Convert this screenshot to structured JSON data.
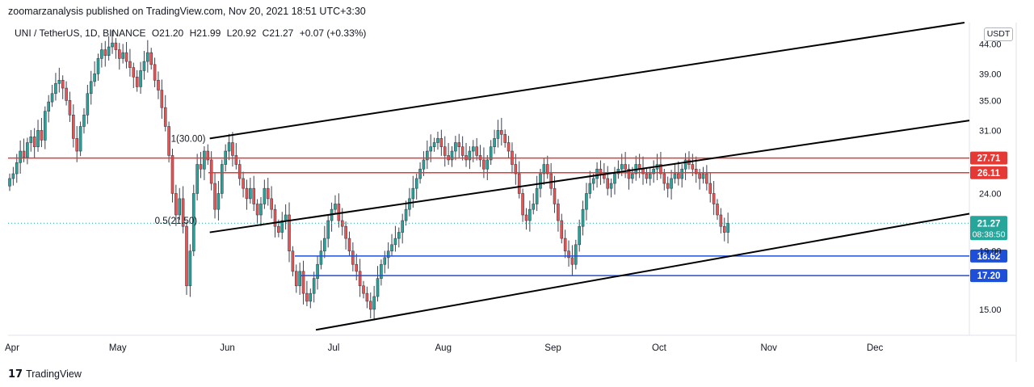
{
  "header": {
    "publish_line": "zoomarzanalysis published on TradingView.com, Nov 20, 2021 18:51 UTC+3:30"
  },
  "legend": {
    "symbol": "UNI / TetherUS, 1D, BINANCE",
    "open": "O21.20",
    "high": "H21.99",
    "low": "L20.92",
    "close": "C21.27",
    "change": "+0.07 (+0.33%)"
  },
  "currency_button": "USDT",
  "footer": {
    "brand": "TradingView"
  },
  "fib_labels": {
    "top": "1(30.00)",
    "mid": "0.5(21.50)"
  },
  "colors": {
    "up": "#26a69a",
    "down": "#ef5350",
    "candle_body": "#5a5f6b",
    "resistance": "#e53935",
    "support": "#1e4fd8",
    "channel": "#000000",
    "last_price": "#26a69a"
  },
  "chart_data": {
    "type": "candlestick",
    "symbol": "UNI / TetherUS",
    "timeframe": "1D",
    "exchange": "BINANCE",
    "scale": "log",
    "x_ticks": [
      "Apr",
      "May",
      "Jun",
      "Jul",
      "Aug",
      "Sep",
      "Oct",
      "Nov",
      "Dec"
    ],
    "y_ticks": [
      15.0,
      17.2,
      18.62,
      21.27,
      24.0,
      26.11,
      27.71,
      31.0,
      35.0,
      39.0,
      44.0
    ],
    "y_ticks_axis": [
      "44.00",
      "39.00",
      "35.00",
      "31.00",
      "24.00",
      "19.00",
      "15.00"
    ],
    "ylim": [
      13.5,
      48.0
    ],
    "horizontal_levels": [
      {
        "value": 27.71,
        "label": "27.71",
        "color": "resistance"
      },
      {
        "value": 26.11,
        "label": "26.11",
        "color": "resistance"
      },
      {
        "value": 18.62,
        "label": "18.62",
        "color": "support"
      },
      {
        "value": 17.2,
        "label": "17.20",
        "color": "support"
      }
    ],
    "last_price": {
      "value": 21.27,
      "label": "21.27",
      "countdown": "08:38:50"
    },
    "channel_lines": [
      {
        "from": [
          "2021-05-27",
          30.0
        ],
        "to": [
          "2021-12-31",
          48.5
        ]
      },
      {
        "from": [
          "2021-05-27",
          20.5
        ],
        "to": [
          "2021-12-31",
          32.5
        ]
      },
      {
        "from": [
          "2021-06-26",
          13.8
        ],
        "to": [
          "2021-12-31",
          22.3
        ]
      }
    ],
    "close_series": {
      "dates_start": "2021-03-31",
      "values": [
        25.5,
        26.0,
        27.2,
        28.5,
        27.8,
        29.5,
        30.2,
        29.0,
        31.0,
        29.8,
        33.5,
        34.8,
        36.0,
        37.5,
        38.0,
        36.8,
        35.0,
        33.0,
        30.0,
        28.5,
        31.5,
        33.0,
        36.0,
        37.8,
        39.0,
        41.5,
        43.0,
        42.0,
        43.5,
        44.2,
        43.0,
        41.5,
        42.5,
        41.0,
        40.0,
        38.5,
        37.0,
        39.5,
        41.0,
        42.5,
        40.5,
        38.0,
        36.5,
        34.0,
        31.5,
        28.0,
        24.0,
        22.0,
        23.5,
        21.0,
        16.5,
        19.0,
        24.0,
        27.0,
        26.5,
        28.5,
        27.5,
        25.0,
        22.5,
        24.0,
        27.0,
        28.5,
        29.5,
        28.0,
        27.0,
        25.5,
        24.5,
        23.5,
        24.5,
        23.0,
        22.0,
        23.0,
        24.5,
        23.5,
        22.5,
        21.0,
        20.5,
        21.5,
        22.0,
        19.0,
        17.5,
        16.5,
        17.5,
        16.0,
        15.5,
        16.0,
        17.0,
        18.0,
        19.0,
        20.0,
        21.5,
        22.5,
        23.0,
        21.5,
        21.0,
        20.0,
        19.0,
        18.0,
        17.5,
        16.5,
        16.0,
        15.5,
        15.0,
        15.8,
        17.0,
        18.0,
        18.5,
        19.0,
        19.5,
        20.0,
        20.5,
        21.5,
        22.5,
        23.5,
        24.5,
        25.5,
        26.5,
        27.5,
        28.5,
        29.0,
        29.5,
        30.0,
        29.0,
        28.0,
        27.5,
        28.5,
        29.5,
        29.0,
        28.0,
        27.5,
        28.5,
        29.0,
        28.0,
        27.5,
        26.5,
        27.5,
        29.0,
        30.0,
        31.0,
        30.5,
        29.5,
        28.5,
        27.0,
        26.0,
        24.0,
        22.0,
        21.5,
        22.5,
        23.0,
        24.5,
        26.0,
        27.0,
        26.0,
        24.5,
        23.0,
        21.5,
        20.0,
        19.0,
        18.5,
        18.0,
        19.5,
        21.0,
        22.5,
        24.0,
        25.0,
        25.5,
        26.5,
        26.0,
        25.5,
        24.5,
        25.0,
        26.0,
        26.5,
        27.0,
        26.5,
        25.5,
        26.0,
        27.0,
        26.5,
        26.0,
        25.5,
        26.0,
        26.5,
        27.0,
        26.0,
        25.0,
        24.5,
        25.5,
        26.0,
        25.5,
        26.5,
        27.5,
        27.0,
        26.5,
        26.0,
        25.5,
        26.0,
        25.0,
        24.0,
        23.0,
        22.0,
        21.0,
        20.5,
        21.27
      ]
    },
    "annotations": [
      "1(30.00)",
      "0.5(21.50)"
    ]
  }
}
